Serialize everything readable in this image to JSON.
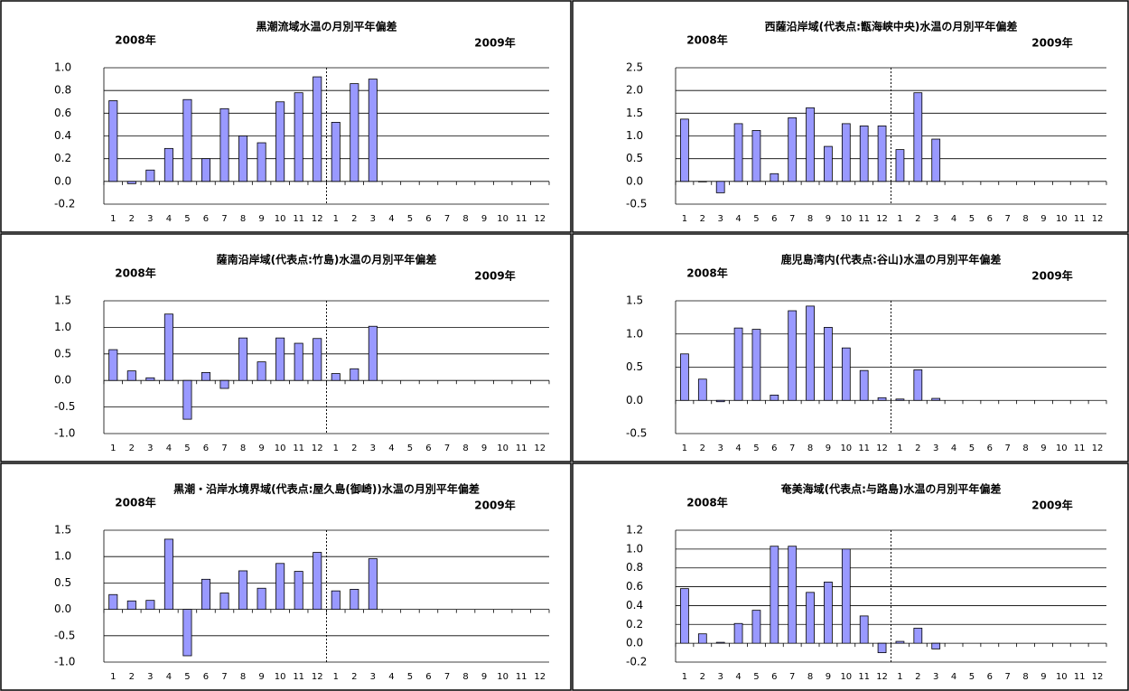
{
  "chart_data": [
    {
      "type": "bar",
      "title": "黒潮流域水温の月別平年偏差",
      "annotations": [
        "2008年",
        "2009年"
      ],
      "categories": [
        "1",
        "2",
        "3",
        "4",
        "5",
        "6",
        "7",
        "8",
        "9",
        "10",
        "11",
        "12",
        "1",
        "2",
        "3",
        "4",
        "5",
        "6",
        "7",
        "8",
        "9",
        "10",
        "11",
        "12"
      ],
      "values": [
        0.71,
        -0.02,
        0.1,
        0.29,
        0.72,
        0.2,
        0.64,
        0.4,
        0.34,
        0.7,
        0.78,
        0.92,
        0.52,
        0.86,
        0.9,
        null,
        null,
        null,
        null,
        null,
        null,
        null,
        null,
        null
      ],
      "color": "#9999ff",
      "ylim": [
        -0.2,
        1.0
      ],
      "yticks": [
        -0.2,
        {
          "value": 0,
          "label": "0.0"
        },
        0.2,
        0.4,
        0.6,
        0.8,
        {
          "value": 1,
          "label": "1.0"
        }
      ],
      "grid": true
    },
    {
      "type": "bar",
      "title": "西薩沿岸域(代表点:甑海峡中央)水温の月別平年偏差",
      "annotations": [
        "2008年",
        "2009年"
      ],
      "categories": [
        "1",
        "2",
        "3",
        "4",
        "5",
        "6",
        "7",
        "8",
        "9",
        "10",
        "11",
        "12",
        "1",
        "2",
        "3",
        "4",
        "5",
        "6",
        "7",
        "8",
        "9",
        "10",
        "11",
        "12"
      ],
      "values": [
        1.37,
        0,
        -0.25,
        1.27,
        1.12,
        0.17,
        1.4,
        1.62,
        0.77,
        1.27,
        1.22,
        1.22,
        0.7,
        1.95,
        0.93,
        null,
        null,
        null,
        null,
        null,
        null,
        null,
        null,
        null
      ],
      "color": "#9999ff",
      "ylim": [
        -0.5,
        2.5
      ],
      "yticks": [
        -0.5,
        {
          "value": 0,
          "label": "0.0"
        },
        0.5,
        {
          "value": 1,
          "label": "1.0"
        },
        1.5,
        {
          "value": 2,
          "label": "2.0"
        },
        2.5
      ],
      "grid": true
    },
    {
      "type": "bar",
      "title": "薩南沿岸域(代表点:竹島)水温の月別平年偏差",
      "annotations": [
        "2008年",
        "2009年"
      ],
      "categories": [
        "1",
        "2",
        "3",
        "4",
        "5",
        "6",
        "7",
        "8",
        "9",
        "10",
        "11",
        "12",
        "1",
        "2",
        "3",
        "4",
        "5",
        "6",
        "7",
        "8",
        "9",
        "10",
        "11",
        "12"
      ],
      "values": [
        0.58,
        0.18,
        0.05,
        1.25,
        -0.73,
        0.15,
        -0.15,
        0.8,
        0.35,
        0.8,
        0.7,
        0.79,
        0.13,
        0.22,
        1.02,
        null,
        null,
        null,
        null,
        null,
        null,
        null,
        null,
        null
      ],
      "color": "#9999ff",
      "ylim": [
        -1,
        1.5
      ],
      "yticks": [
        {
          "value": -1,
          "label": "-1.0"
        },
        -0.5,
        {
          "value": 0,
          "label": "0.0"
        },
        0.5,
        {
          "value": 1,
          "label": "1.0"
        },
        1.5
      ],
      "grid": true
    },
    {
      "type": "bar",
      "title": "鹿児島湾内(代表点:谷山)水温の月別平年偏差",
      "annotations": [
        "2008年",
        "2009年"
      ],
      "categories": [
        "1",
        "2",
        "3",
        "4",
        "5",
        "6",
        "7",
        "8",
        "9",
        "10",
        "11",
        "12",
        "1",
        "2",
        "3",
        "4",
        "5",
        "6",
        "7",
        "8",
        "9",
        "10",
        "11",
        "12"
      ],
      "values": [
        0.7,
        0.32,
        -0.02,
        1.09,
        1.07,
        0.08,
        1.35,
        1.42,
        1.1,
        0.79,
        0.45,
        0.04,
        0.02,
        0.46,
        0.03,
        null,
        null,
        null,
        null,
        null,
        null,
        null,
        null,
        null
      ],
      "color": "#9999ff",
      "ylim": [
        -0.5,
        1.5
      ],
      "yticks": [
        -0.5,
        {
          "value": 0,
          "label": "0.0"
        },
        0.5,
        {
          "value": 1,
          "label": "1.0"
        },
        1.5
      ],
      "grid": true
    },
    {
      "type": "bar",
      "title": "黒潮・沿岸水境界域(代表点:屋久島(御崎))水温の月別平年偏差",
      "annotations": [
        "2008年",
        "2009年"
      ],
      "categories": [
        "1",
        "2",
        "3",
        "4",
        "5",
        "6",
        "7",
        "8",
        "9",
        "10",
        "11",
        "12",
        "1",
        "2",
        "3",
        "4",
        "5",
        "6",
        "7",
        "8",
        "9",
        "10",
        "11",
        "12"
      ],
      "values": [
        0.28,
        0.16,
        0.17,
        1.33,
        -0.88,
        0.57,
        0.31,
        0.73,
        0.4,
        0.87,
        0.72,
        1.08,
        0.35,
        0.38,
        0.96,
        null,
        null,
        null,
        null,
        null,
        null,
        null,
        null,
        null
      ],
      "color": "#9999ff",
      "ylim": [
        -1,
        1.5
      ],
      "yticks": [
        {
          "value": -1,
          "label": "-1.0"
        },
        -0.5,
        {
          "value": 0,
          "label": "0.0"
        },
        0.5,
        {
          "value": 1,
          "label": "1.0"
        },
        1.5
      ],
      "grid": true
    },
    {
      "type": "bar",
      "title": "奄美海域(代表点:与路島)水温の月別平年偏差",
      "annotations": [
        "2008年",
        "2009年"
      ],
      "categories": [
        "1",
        "2",
        "3",
        "4",
        "5",
        "6",
        "7",
        "8",
        "9",
        "10",
        "11",
        "12",
        "1",
        "2",
        "3",
        "4",
        "5",
        "6",
        "7",
        "8",
        "9",
        "10",
        "11",
        "12"
      ],
      "values": [
        0.58,
        0.1,
        0.01,
        0.21,
        0.35,
        1.03,
        1.03,
        0.54,
        0.65,
        1.0,
        0.29,
        -0.1,
        0.02,
        0.16,
        -0.06,
        null,
        null,
        null,
        null,
        null,
        null,
        null,
        null,
        null
      ],
      "color": "#9999ff",
      "ylim": [
        -0.2,
        1.2
      ],
      "yticks": [
        -0.2,
        {
          "value": 0,
          "label": "0.0"
        },
        0.2,
        0.4,
        0.6,
        0.8,
        {
          "value": 1,
          "label": "1.0"
        },
        1.2
      ],
      "grid": true
    }
  ]
}
